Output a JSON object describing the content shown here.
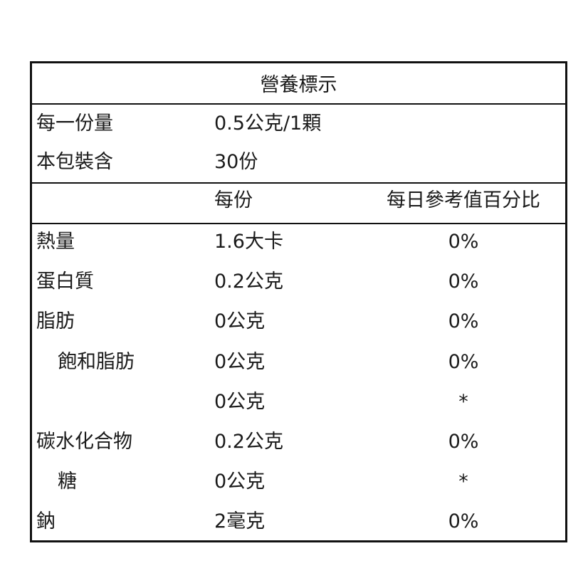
{
  "title": "營養標示",
  "serving": {
    "rows": [
      [
        "每一份量",
        "0.5公克/1顆"
      ],
      [
        "本包裝含",
        "30份"
      ]
    ]
  },
  "table": {
    "header": [
      "每份",
      "每日參考值百分比"
    ],
    "rows": [
      {
        "name": "熱量",
        "amount": "1.6大卡",
        "daily_value": "0%",
        "indent": false
      },
      {
        "name": "蛋白質",
        "amount": "0.2公克",
        "daily_value": "0%",
        "indent": false
      },
      {
        "name": "脂肪",
        "amount": "0公克",
        "daily_value": "0%",
        "indent": false
      },
      {
        "name": "飽和脂肪",
        "amount": "0公克",
        "daily_value": "0%",
        "indent": true
      },
      {
        "name": null,
        "amount": "0公克",
        "daily_value": "*",
        "indent": true
      },
      {
        "name": "碳水化合物",
        "amount": "0.2公克",
        "daily_value": "0%",
        "indent": false
      },
      {
        "name": "糖",
        "amount": "0公克",
        "daily_value": "*",
        "indent": true
      },
      {
        "name": "鈉",
        "amount": "2毫克",
        "daily_value": "0%",
        "indent": false
      }
    ]
  }
}
